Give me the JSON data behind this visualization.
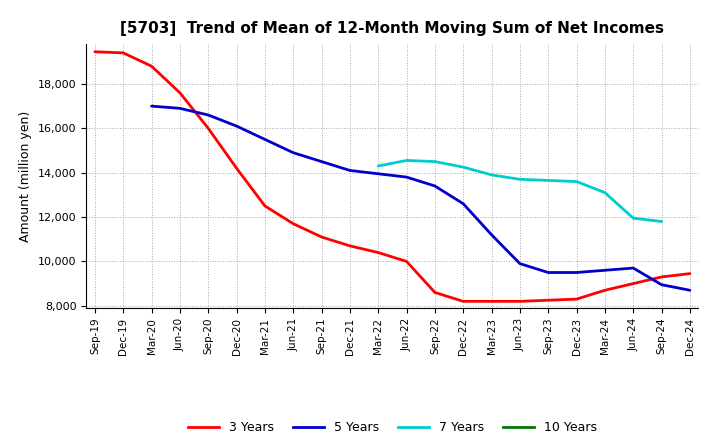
{
  "title": "[5703]  Trend of Mean of 12-Month Moving Sum of Net Incomes",
  "ylabel": "Amount (million yen)",
  "x_labels": [
    "Sep-19",
    "Dec-19",
    "Mar-20",
    "Jun-20",
    "Sep-20",
    "Dec-20",
    "Mar-21",
    "Jun-21",
    "Sep-21",
    "Dec-21",
    "Mar-22",
    "Jun-22",
    "Sep-22",
    "Dec-22",
    "Mar-23",
    "Jun-23",
    "Sep-23",
    "Dec-23",
    "Mar-24",
    "Jun-24",
    "Sep-24",
    "Dec-24"
  ],
  "ylim": [
    7900,
    19800
  ],
  "yticks": [
    8000,
    10000,
    12000,
    14000,
    16000,
    18000
  ],
  "series": {
    "3 Years": {
      "color": "#ff0000",
      "data_x": [
        0,
        1,
        2,
        3,
        4,
        5,
        6,
        7,
        8,
        9,
        10,
        11,
        12,
        13,
        14,
        15,
        16,
        17,
        18,
        19,
        20,
        21
      ],
      "data_y": [
        19450,
        19400,
        18800,
        17600,
        16000,
        14200,
        12500,
        11700,
        11100,
        10700,
        10400,
        10000,
        8600,
        8200,
        8200,
        8200,
        8250,
        8300,
        8700,
        9000,
        9300,
        9450
      ]
    },
    "5 Years": {
      "color": "#0000cc",
      "data_x": [
        2,
        3,
        4,
        5,
        6,
        7,
        8,
        9,
        10,
        11,
        12,
        13,
        14,
        15,
        16,
        17,
        18,
        19,
        20,
        21
      ],
      "data_y": [
        17000,
        16900,
        16600,
        16100,
        15500,
        14900,
        14500,
        14100,
        13950,
        13800,
        13400,
        12600,
        11200,
        9900,
        9500,
        9500,
        9600,
        9700,
        8950,
        8700
      ]
    },
    "7 Years": {
      "color": "#00cccc",
      "data_x": [
        10,
        11,
        12,
        13,
        14,
        15,
        16,
        17,
        18,
        19,
        20
      ],
      "data_y": [
        14300,
        14550,
        14500,
        14250,
        13900,
        13700,
        13650,
        13600,
        13100,
        11950,
        11800
      ]
    },
    "10 Years": {
      "color": "#007700",
      "data_x": [],
      "data_y": []
    }
  },
  "legend_labels": [
    "3 Years",
    "5 Years",
    "7 Years",
    "10 Years"
  ],
  "legend_colors": [
    "#ff0000",
    "#0000cc",
    "#00cccc",
    "#007700"
  ],
  "background_color": "#ffffff",
  "grid_color": "#aaaaaa"
}
